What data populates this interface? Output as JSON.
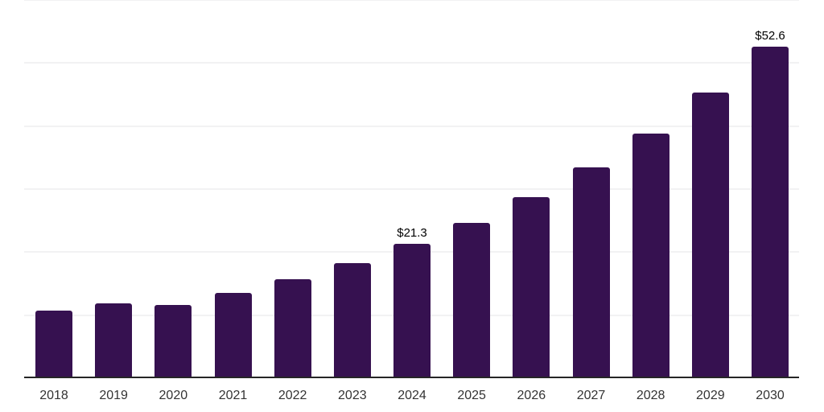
{
  "chart_data": {
    "type": "bar",
    "categories": [
      "2018",
      "2019",
      "2020",
      "2021",
      "2022",
      "2023",
      "2024",
      "2025",
      "2026",
      "2027",
      "2028",
      "2029",
      "2030"
    ],
    "values": [
      10.7,
      11.9,
      11.6,
      13.5,
      15.7,
      18.3,
      21.3,
      24.6,
      28.7,
      33.4,
      38.8,
      45.3,
      52.6
    ],
    "data_labels": [
      null,
      null,
      null,
      null,
      null,
      null,
      "$21.3",
      null,
      null,
      null,
      null,
      null,
      "$52.6"
    ],
    "title": "",
    "xlabel": "",
    "ylabel": "",
    "ylim": [
      0,
      60
    ],
    "grid_step": 10,
    "grid": "horizontal-only",
    "legend": "none",
    "y_axis_labels_visible": false,
    "colors": {
      "bar": "#361150",
      "axis_line": "#262626",
      "gridline": "#f2f2f3",
      "tick_label": "#333333",
      "value_label": "#000000",
      "background": "#ffffff"
    }
  }
}
